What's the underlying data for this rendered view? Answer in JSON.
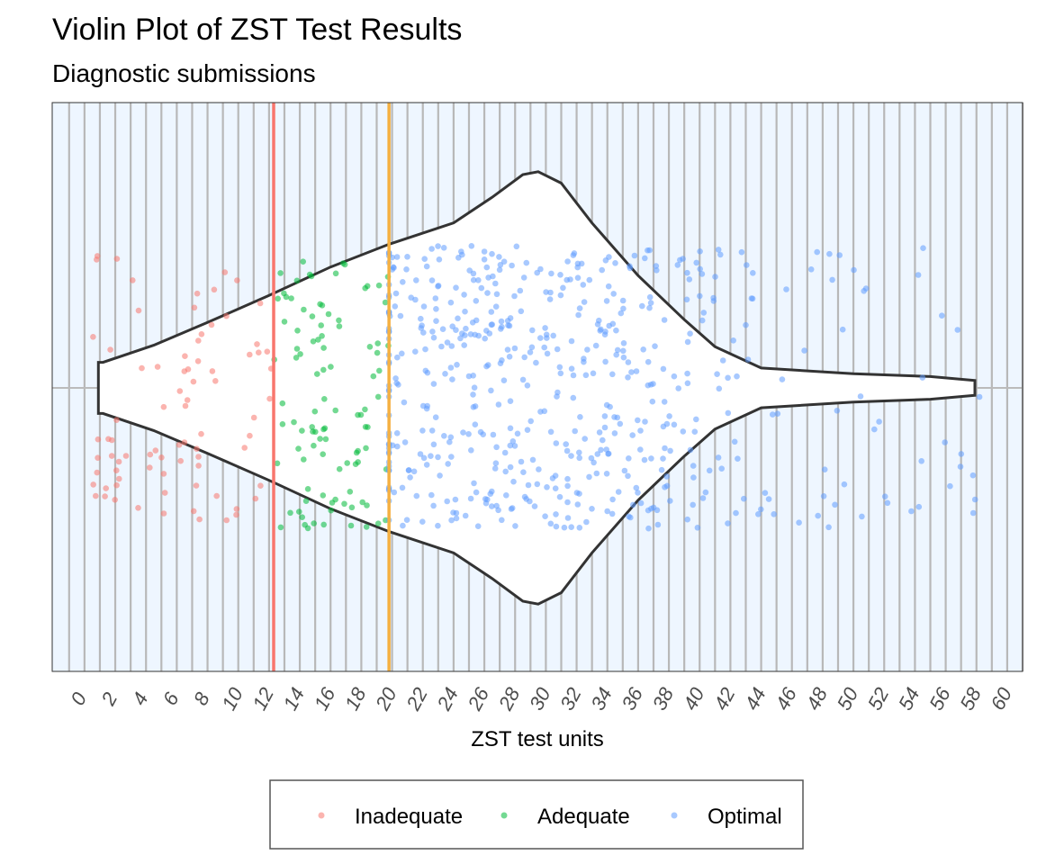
{
  "chart_data": {
    "type": "violin",
    "title": "Violin Plot of ZST Test Results",
    "subtitle": "Diagnostic submissions",
    "xlabel": "ZST test units",
    "ylabel": "",
    "xlim": [
      -2.1,
      61
    ],
    "x_ticks": [
      0,
      2,
      4,
      6,
      8,
      10,
      12,
      14,
      16,
      18,
      20,
      22,
      24,
      26,
      28,
      30,
      32,
      34,
      36,
      38,
      40,
      42,
      44,
      46,
      48,
      50,
      52,
      54,
      56,
      58,
      60
    ],
    "x_tick_labels": [
      "0",
      "2",
      "4",
      "6",
      "8",
      "10",
      "12",
      "14",
      "16",
      "18",
      "20",
      "22",
      "24",
      "26",
      "28",
      "30",
      "32",
      "34",
      "36",
      "38",
      "40",
      "42",
      "44",
      "46",
      "48",
      "50",
      "52",
      "54",
      "56",
      "58",
      "60"
    ],
    "grid": "vertical major and minor",
    "reference_lines": [
      {
        "x": 12.3,
        "color": "#f8766d"
      },
      {
        "x": 19.8,
        "color": "#f5b041"
      }
    ],
    "violin_profile": [
      [
        0.9,
        0.09
      ],
      [
        1.2,
        0.09
      ],
      [
        4.5,
        0.15
      ],
      [
        8,
        0.23
      ],
      [
        12,
        0.325
      ],
      [
        16,
        0.425
      ],
      [
        19.8,
        0.505
      ],
      [
        24,
        0.58
      ],
      [
        26.5,
        0.67
      ],
      [
        28.5,
        0.75
      ],
      [
        29.5,
        0.76
      ],
      [
        31,
        0.72
      ],
      [
        33,
        0.58
      ],
      [
        36,
        0.395
      ],
      [
        39,
        0.24
      ],
      [
        41,
        0.145
      ],
      [
        44,
        0.07
      ],
      [
        50,
        0.05
      ],
      [
        55,
        0.04
      ],
      [
        57.9,
        0.026
      ]
    ],
    "series": [
      {
        "name": "Inadequate",
        "color": "#f8766d",
        "range": [
          0.3,
          12.3
        ],
        "count": 80
      },
      {
        "name": "Adequate",
        "color": "#00ba38",
        "range": [
          12.3,
          19.8
        ],
        "count": 100
      },
      {
        "name": "Optimal",
        "color": "#619cff",
        "range": [
          19.8,
          58.2
        ],
        "count": 560
      }
    ],
    "legend": {
      "position": "bottom",
      "entries": [
        "Inadequate",
        "Adequate",
        "Optimal"
      ]
    }
  }
}
